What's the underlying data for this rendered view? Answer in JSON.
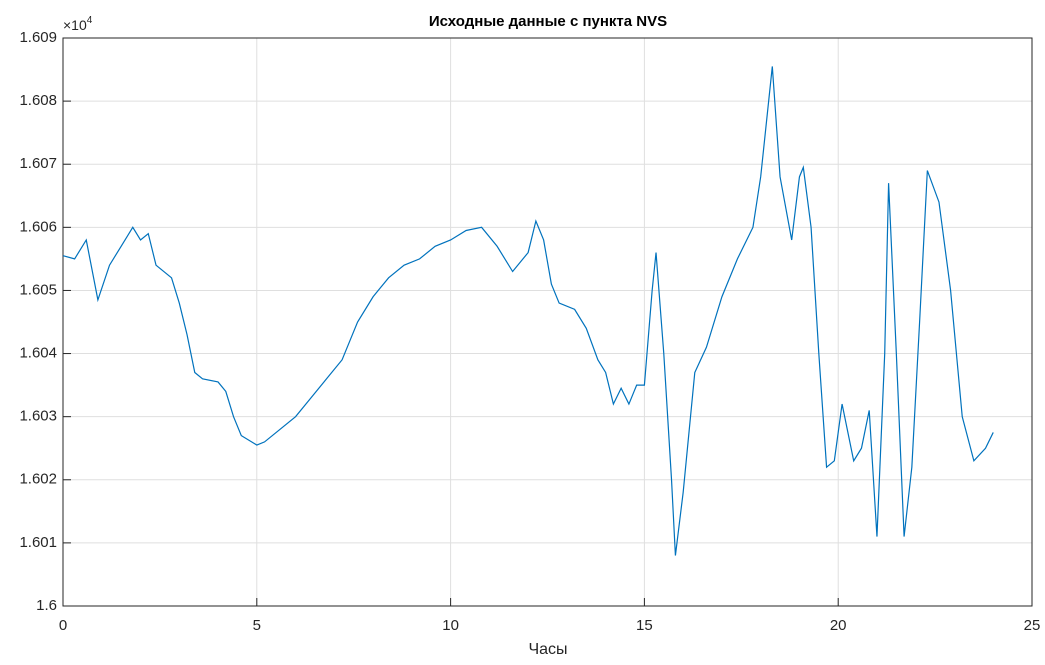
{
  "chart_data": {
    "type": "line",
    "title": "Исходные данные с пункта NVS",
    "x_label": "Часы",
    "y_multiplier_base": "×10",
    "y_multiplier_power": "4",
    "x": [
      0,
      0.3,
      0.6,
      0.9,
      1.2,
      1.5,
      1.8,
      2.0,
      2.2,
      2.4,
      2.8,
      3.0,
      3.2,
      3.4,
      3.6,
      4.0,
      4.2,
      4.4,
      4.6,
      5.0,
      5.2,
      5.6,
      6.0,
      6.4,
      6.8,
      7.2,
      7.4,
      7.6,
      8.0,
      8.4,
      8.8,
      9.2,
      9.6,
      10.0,
      10.4,
      10.8,
      11.2,
      11.6,
      12.0,
      12.2,
      12.4,
      12.6,
      12.8,
      13.2,
      13.5,
      13.8,
      14.0,
      14.2,
      14.4,
      14.6,
      14.8,
      15.0,
      15.2,
      15.3,
      15.5,
      15.7,
      15.8,
      16.0,
      16.3,
      16.6,
      17.0,
      17.4,
      17.8,
      18.0,
      18.3,
      18.5,
      18.8,
      19.0,
      19.1,
      19.3,
      19.5,
      19.7,
      19.9,
      20.1,
      20.4,
      20.6,
      20.8,
      21.0,
      21.2,
      21.3,
      21.5,
      21.7,
      21.9,
      22.1,
      22.3,
      22.6,
      22.9,
      23.2,
      23.5,
      23.8,
      24.0
    ],
    "series": [
      {
        "color": "#0072bd",
        "values": [
          16055.5,
          16055,
          16058,
          16048.5,
          16054,
          16057,
          16060,
          16058,
          16059,
          16054,
          16052,
          16048,
          16043,
          16037,
          16036,
          16035.5,
          16034,
          16030,
          16027,
          16025.5,
          16026,
          16028,
          16030,
          16033,
          16036,
          16039,
          16042,
          16045,
          16049,
          16052,
          16054,
          16055,
          16057,
          16058,
          16059.5,
          16060,
          16057,
          16053,
          16056,
          16061,
          16058,
          16051,
          16048,
          16047,
          16044,
          16039,
          16037,
          16032,
          16034.5,
          16032,
          16035,
          16035,
          16050,
          16056,
          16040,
          16020,
          16008,
          16018,
          16037,
          16041,
          16049,
          16055,
          16060,
          16068,
          16085.5,
          16068,
          16058,
          16068,
          16069.5,
          16060,
          16040,
          16022,
          16023,
          16032,
          16023,
          16025,
          16031,
          16011,
          16040,
          16067,
          16040,
          16011,
          16022,
          16045,
          16069,
          16064,
          16050,
          16030,
          16023,
          16025,
          16027.5
        ]
      }
    ],
    "xlim": [
      0,
      25
    ],
    "xticks": [
      0,
      5,
      10,
      15,
      20,
      25
    ],
    "ylim": [
      16000,
      16090
    ],
    "yticks": [
      {
        "value": 16000,
        "label": "1.6"
      },
      {
        "value": 16010,
        "label": "1.601"
      },
      {
        "value": 16020,
        "label": "1.602"
      },
      {
        "value": 16030,
        "label": "1.603"
      },
      {
        "value": 16040,
        "label": "1.604"
      },
      {
        "value": 16050,
        "label": "1.605"
      },
      {
        "value": 16060,
        "label": "1.606"
      },
      {
        "value": 16070,
        "label": "1.607"
      },
      {
        "value": 16080,
        "label": "1.608"
      },
      {
        "value": 16090,
        "label": "1.609"
      }
    ],
    "grid": true
  }
}
